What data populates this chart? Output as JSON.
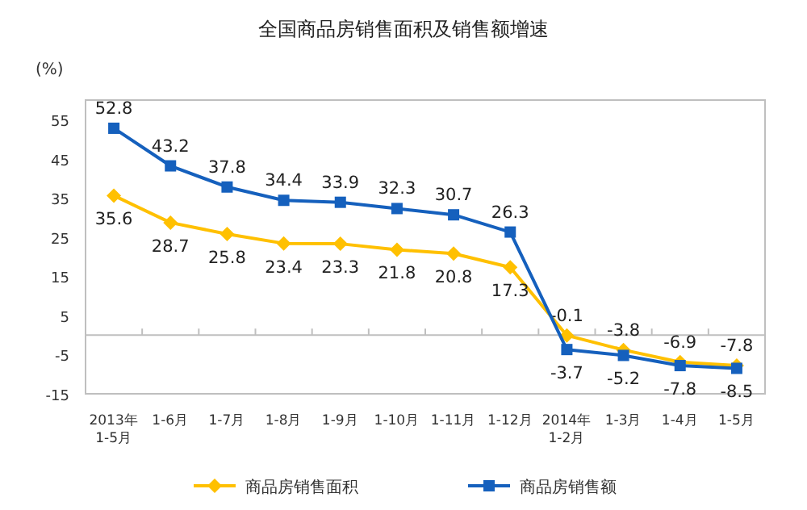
{
  "chart_data": {
    "type": "line",
    "title": "全国商品房销售面积及销售额增速",
    "ylabel": "(%)",
    "categories": [
      "2013年\n1-5月",
      "1-6月",
      "1-7月",
      "1-8月",
      "1-9月",
      "1-10月",
      "1-11月",
      "1-12月",
      "2014年\n1-2月",
      "1-3月",
      "1-4月",
      "1-5月"
    ],
    "series": [
      {
        "name": "商品房销售面积",
        "color": "#ffc000",
        "marker": "diamond",
        "values": [
          35.6,
          28.7,
          25.8,
          23.4,
          23.3,
          21.8,
          20.8,
          17.3,
          -0.1,
          -3.8,
          -6.9,
          -7.8
        ]
      },
      {
        "name": "商品房销售额",
        "color": "#1560bd",
        "marker": "square",
        "values": [
          52.8,
          43.2,
          37.8,
          34.4,
          33.9,
          32.3,
          30.7,
          26.3,
          -3.7,
          -5.2,
          -7.8,
          -8.5
        ]
      }
    ],
    "ylim": [
      -15,
      60
    ],
    "yticks": [
      -15,
      -5,
      5,
      15,
      25,
      35,
      45,
      55
    ],
    "ref_lines": [
      {
        "axis": "y",
        "value": 0,
        "color": "#bfbfbf"
      }
    ],
    "data_labels": true,
    "legend": "bottom",
    "grid": false,
    "line_style": "solid"
  }
}
